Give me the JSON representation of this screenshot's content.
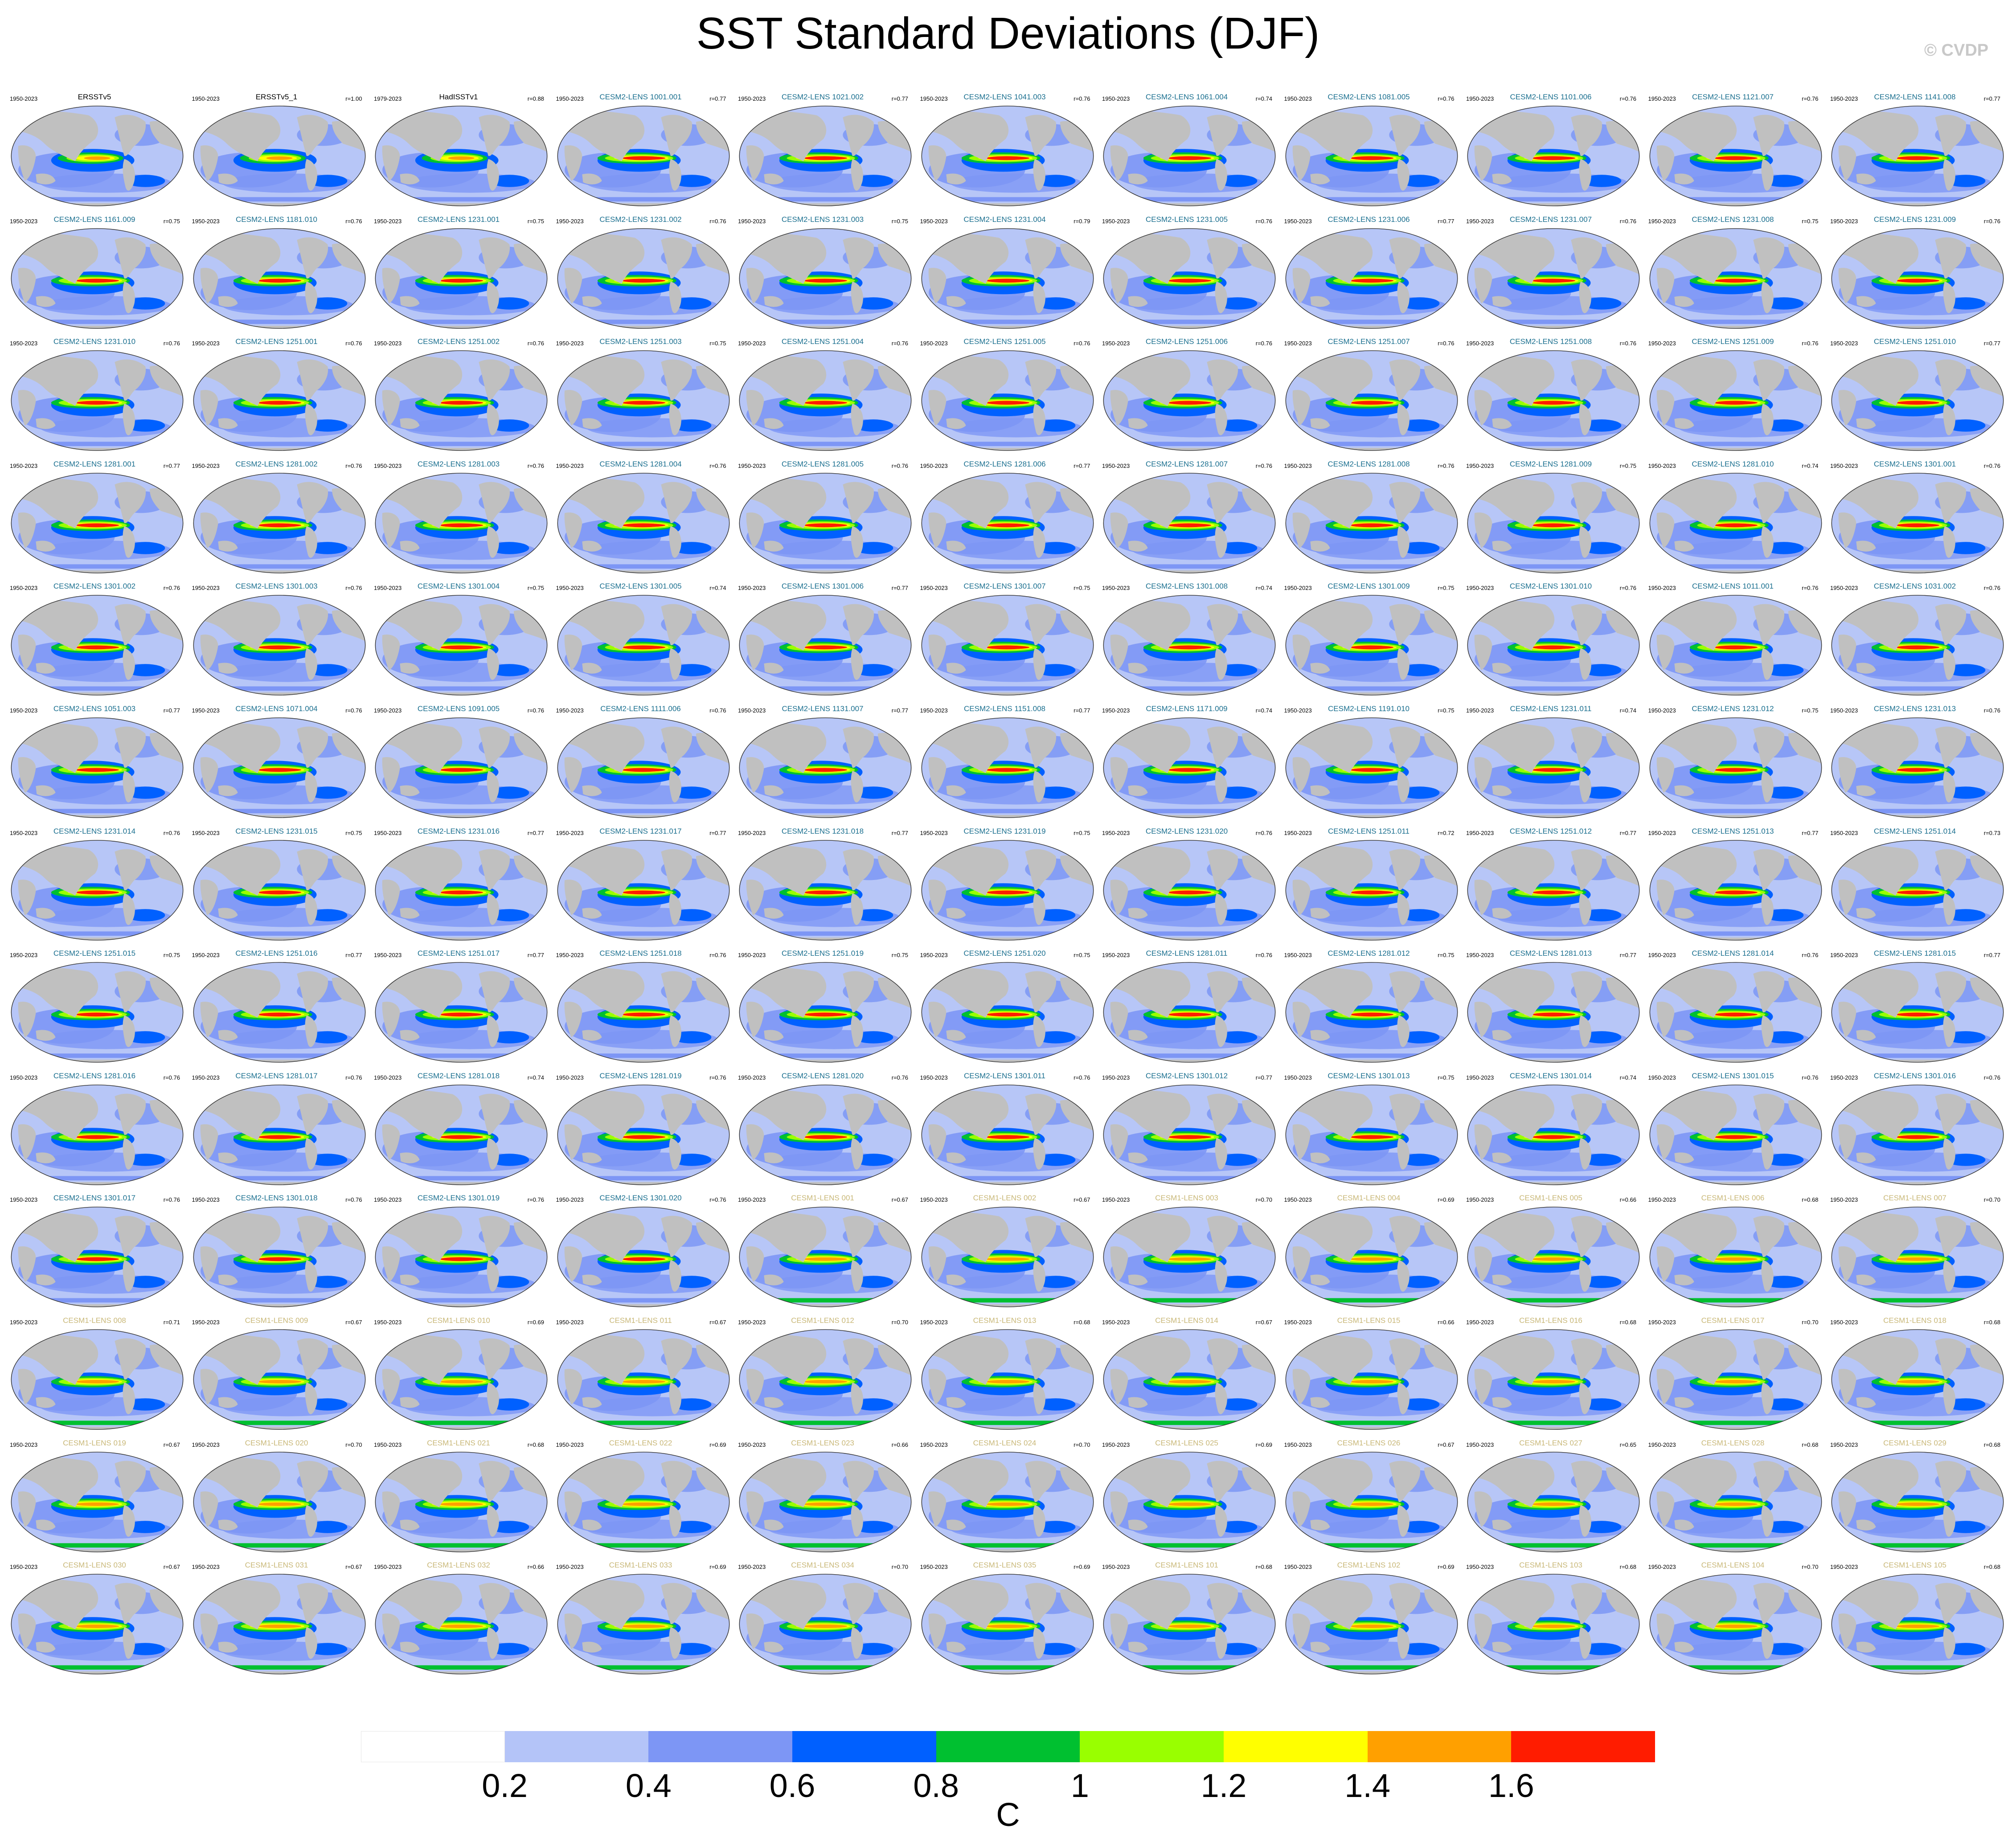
{
  "title": "SST Standard Deviations (DJF)",
  "credit": "© CVDP",
  "colors": {
    "ocean_base": "#b7c6f7",
    "land": "#c0c0c0",
    "obs_name": "#000000",
    "cesm2_name": "#1a6f8f",
    "cesm1_name": "#c9b878"
  },
  "colorbar": {
    "units": "C",
    "tick_labels": [
      "0.2",
      "0.4",
      "0.6",
      "0.8",
      "1",
      "1.2",
      "1.4",
      "1.6"
    ],
    "colors": [
      "#ffffff",
      "#b4c4f8",
      "#7d96f5",
      "#0060ff",
      "#00c030",
      "#99ff00",
      "#ffff00",
      "#ffa000",
      "#ff1c00"
    ]
  },
  "panels": [
    {
      "name": "ERSSTv5",
      "years": "1950-2023",
      "r": "",
      "group": "obs"
    },
    {
      "name": "ERSSTv5_1",
      "years": "1950-2023",
      "r": "r=1.00",
      "group": "obs"
    },
    {
      "name": "HadISSTv1",
      "years": "1979-2023",
      "r": "r=0.88",
      "group": "obs"
    },
    {
      "name": "CESM2-LENS 1001.001",
      "years": "1950-2023",
      "r": "r=0.77",
      "group": "cesm2"
    },
    {
      "name": "CESM2-LENS 1021.002",
      "years": "1950-2023",
      "r": "r=0.77",
      "group": "cesm2"
    },
    {
      "name": "CESM2-LENS 1041.003",
      "years": "1950-2023",
      "r": "r=0.76",
      "group": "cesm2"
    },
    {
      "name": "CESM2-LENS 1061.004",
      "years": "1950-2023",
      "r": "r=0.74",
      "group": "cesm2"
    },
    {
      "name": "CESM2-LENS 1081.005",
      "years": "1950-2023",
      "r": "r=0.76",
      "group": "cesm2"
    },
    {
      "name": "CESM2-LENS 1101.006",
      "years": "1950-2023",
      "r": "r=0.76",
      "group": "cesm2"
    },
    {
      "name": "CESM2-LENS 1121.007",
      "years": "1950-2023",
      "r": "r=0.76",
      "group": "cesm2"
    },
    {
      "name": "CESM2-LENS 1141.008",
      "years": "1950-2023",
      "r": "r=0.77",
      "group": "cesm2"
    },
    {
      "name": "CESM2-LENS 1161.009",
      "years": "1950-2023",
      "r": "r=0.75",
      "group": "cesm2"
    },
    {
      "name": "CESM2-LENS 1181.010",
      "years": "1950-2023",
      "r": "r=0.76",
      "group": "cesm2"
    },
    {
      "name": "CESM2-LENS 1231.001",
      "years": "1950-2023",
      "r": "r=0.75",
      "group": "cesm2"
    },
    {
      "name": "CESM2-LENS 1231.002",
      "years": "1950-2023",
      "r": "r=0.76",
      "group": "cesm2"
    },
    {
      "name": "CESM2-LENS 1231.003",
      "years": "1950-2023",
      "r": "r=0.75",
      "group": "cesm2"
    },
    {
      "name": "CESM2-LENS 1231.004",
      "years": "1950-2023",
      "r": "r=0.79",
      "group": "cesm2"
    },
    {
      "name": "CESM2-LENS 1231.005",
      "years": "1950-2023",
      "r": "r=0.76",
      "group": "cesm2"
    },
    {
      "name": "CESM2-LENS 1231.006",
      "years": "1950-2023",
      "r": "r=0.77",
      "group": "cesm2"
    },
    {
      "name": "CESM2-LENS 1231.007",
      "years": "1950-2023",
      "r": "r=0.76",
      "group": "cesm2"
    },
    {
      "name": "CESM2-LENS 1231.008",
      "years": "1950-2023",
      "r": "r=0.75",
      "group": "cesm2"
    },
    {
      "name": "CESM2-LENS 1231.009",
      "years": "1950-2023",
      "r": "r=0.76",
      "group": "cesm2"
    },
    {
      "name": "CESM2-LENS 1231.010",
      "years": "1950-2023",
      "r": "r=0.76",
      "group": "cesm2"
    },
    {
      "name": "CESM2-LENS 1251.001",
      "years": "1950-2023",
      "r": "r=0.76",
      "group": "cesm2"
    },
    {
      "name": "CESM2-LENS 1251.002",
      "years": "1950-2023",
      "r": "r=0.76",
      "group": "cesm2"
    },
    {
      "name": "CESM2-LENS 1251.003",
      "years": "1950-2023",
      "r": "r=0.75",
      "group": "cesm2"
    },
    {
      "name": "CESM2-LENS 1251.004",
      "years": "1950-2023",
      "r": "r=0.76",
      "group": "cesm2"
    },
    {
      "name": "CESM2-LENS 1251.005",
      "years": "1950-2023",
      "r": "r=0.76",
      "group": "cesm2"
    },
    {
      "name": "CESM2-LENS 1251.006",
      "years": "1950-2023",
      "r": "r=0.76",
      "group": "cesm2"
    },
    {
      "name": "CESM2-LENS 1251.007",
      "years": "1950-2023",
      "r": "r=0.76",
      "group": "cesm2"
    },
    {
      "name": "CESM2-LENS 1251.008",
      "years": "1950-2023",
      "r": "r=0.76",
      "group": "cesm2"
    },
    {
      "name": "CESM2-LENS 1251.009",
      "years": "1950-2023",
      "r": "r=0.76",
      "group": "cesm2"
    },
    {
      "name": "CESM2-LENS 1251.010",
      "years": "1950-2023",
      "r": "r=0.77",
      "group": "cesm2"
    },
    {
      "name": "CESM2-LENS 1281.001",
      "years": "1950-2023",
      "r": "r=0.77",
      "group": "cesm2"
    },
    {
      "name": "CESM2-LENS 1281.002",
      "years": "1950-2023",
      "r": "r=0.76",
      "group": "cesm2"
    },
    {
      "name": "CESM2-LENS 1281.003",
      "years": "1950-2023",
      "r": "r=0.76",
      "group": "cesm2"
    },
    {
      "name": "CESM2-LENS 1281.004",
      "years": "1950-2023",
      "r": "r=0.76",
      "group": "cesm2"
    },
    {
      "name": "CESM2-LENS 1281.005",
      "years": "1950-2023",
      "r": "r=0.76",
      "group": "cesm2"
    },
    {
      "name": "CESM2-LENS 1281.006",
      "years": "1950-2023",
      "r": "r=0.77",
      "group": "cesm2"
    },
    {
      "name": "CESM2-LENS 1281.007",
      "years": "1950-2023",
      "r": "r=0.76",
      "group": "cesm2"
    },
    {
      "name": "CESM2-LENS 1281.008",
      "years": "1950-2023",
      "r": "r=0.76",
      "group": "cesm2"
    },
    {
      "name": "CESM2-LENS 1281.009",
      "years": "1950-2023",
      "r": "r=0.75",
      "group": "cesm2"
    },
    {
      "name": "CESM2-LENS 1281.010",
      "years": "1950-2023",
      "r": "r=0.74",
      "group": "cesm2"
    },
    {
      "name": "CESM2-LENS 1301.001",
      "years": "1950-2023",
      "r": "r=0.76",
      "group": "cesm2"
    },
    {
      "name": "CESM2-LENS 1301.002",
      "years": "1950-2023",
      "r": "r=0.76",
      "group": "cesm2"
    },
    {
      "name": "CESM2-LENS 1301.003",
      "years": "1950-2023",
      "r": "r=0.76",
      "group": "cesm2"
    },
    {
      "name": "CESM2-LENS 1301.004",
      "years": "1950-2023",
      "r": "r=0.75",
      "group": "cesm2"
    },
    {
      "name": "CESM2-LENS 1301.005",
      "years": "1950-2023",
      "r": "r=0.74",
      "group": "cesm2"
    },
    {
      "name": "CESM2-LENS 1301.006",
      "years": "1950-2023",
      "r": "r=0.77",
      "group": "cesm2"
    },
    {
      "name": "CESM2-LENS 1301.007",
      "years": "1950-2023",
      "r": "r=0.75",
      "group": "cesm2"
    },
    {
      "name": "CESM2-LENS 1301.008",
      "years": "1950-2023",
      "r": "r=0.74",
      "group": "cesm2"
    },
    {
      "name": "CESM2-LENS 1301.009",
      "years": "1950-2023",
      "r": "r=0.75",
      "group": "cesm2"
    },
    {
      "name": "CESM2-LENS 1301.010",
      "years": "1950-2023",
      "r": "r=0.76",
      "group": "cesm2"
    },
    {
      "name": "CESM2-LENS 1011.001",
      "years": "1950-2023",
      "r": "r=0.76",
      "group": "cesm2"
    },
    {
      "name": "CESM2-LENS 1031.002",
      "years": "1950-2023",
      "r": "r=0.76",
      "group": "cesm2"
    },
    {
      "name": "CESM2-LENS 1051.003",
      "years": "1950-2023",
      "r": "r=0.77",
      "group": "cesm2"
    },
    {
      "name": "CESM2-LENS 1071.004",
      "years": "1950-2023",
      "r": "r=0.76",
      "group": "cesm2"
    },
    {
      "name": "CESM2-LENS 1091.005",
      "years": "1950-2023",
      "r": "r=0.76",
      "group": "cesm2"
    },
    {
      "name": "CESM2-LENS 1111.006",
      "years": "1950-2023",
      "r": "r=0.76",
      "group": "cesm2"
    },
    {
      "name": "CESM2-LENS 1131.007",
      "years": "1950-2023",
      "r": "r=0.77",
      "group": "cesm2"
    },
    {
      "name": "CESM2-LENS 1151.008",
      "years": "1950-2023",
      "r": "r=0.77",
      "group": "cesm2"
    },
    {
      "name": "CESM2-LENS 1171.009",
      "years": "1950-2023",
      "r": "r=0.74",
      "group": "cesm2"
    },
    {
      "name": "CESM2-LENS 1191.010",
      "years": "1950-2023",
      "r": "r=0.75",
      "group": "cesm2"
    },
    {
      "name": "CESM2-LENS 1231.011",
      "years": "1950-2023",
      "r": "r=0.74",
      "group": "cesm2"
    },
    {
      "name": "CESM2-LENS 1231.012",
      "years": "1950-2023",
      "r": "r=0.75",
      "group": "cesm2"
    },
    {
      "name": "CESM2-LENS 1231.013",
      "years": "1950-2023",
      "r": "r=0.76",
      "group": "cesm2"
    },
    {
      "name": "CESM2-LENS 1231.014",
      "years": "1950-2023",
      "r": "r=0.76",
      "group": "cesm2"
    },
    {
      "name": "CESM2-LENS 1231.015",
      "years": "1950-2023",
      "r": "r=0.75",
      "group": "cesm2"
    },
    {
      "name": "CESM2-LENS 1231.016",
      "years": "1950-2023",
      "r": "r=0.77",
      "group": "cesm2"
    },
    {
      "name": "CESM2-LENS 1231.017",
      "years": "1950-2023",
      "r": "r=0.77",
      "group": "cesm2"
    },
    {
      "name": "CESM2-LENS 1231.018",
      "years": "1950-2023",
      "r": "r=0.77",
      "group": "cesm2"
    },
    {
      "name": "CESM2-LENS 1231.019",
      "years": "1950-2023",
      "r": "r=0.75",
      "group": "cesm2"
    },
    {
      "name": "CESM2-LENS 1231.020",
      "years": "1950-2023",
      "r": "r=0.76",
      "group": "cesm2"
    },
    {
      "name": "CESM2-LENS 1251.011",
      "years": "1950-2023",
      "r": "r=0.72",
      "group": "cesm2"
    },
    {
      "name": "CESM2-LENS 1251.012",
      "years": "1950-2023",
      "r": "r=0.77",
      "group": "cesm2"
    },
    {
      "name": "CESM2-LENS 1251.013",
      "years": "1950-2023",
      "r": "r=0.77",
      "group": "cesm2"
    },
    {
      "name": "CESM2-LENS 1251.014",
      "years": "1950-2023",
      "r": "r=0.73",
      "group": "cesm2"
    },
    {
      "name": "CESM2-LENS 1251.015",
      "years": "1950-2023",
      "r": "r=0.75",
      "group": "cesm2"
    },
    {
      "name": "CESM2-LENS 1251.016",
      "years": "1950-2023",
      "r": "r=0.77",
      "group": "cesm2"
    },
    {
      "name": "CESM2-LENS 1251.017",
      "years": "1950-2023",
      "r": "r=0.77",
      "group": "cesm2"
    },
    {
      "name": "CESM2-LENS 1251.018",
      "years": "1950-2023",
      "r": "r=0.76",
      "group": "cesm2"
    },
    {
      "name": "CESM2-LENS 1251.019",
      "years": "1950-2023",
      "r": "r=0.75",
      "group": "cesm2"
    },
    {
      "name": "CESM2-LENS 1251.020",
      "years": "1950-2023",
      "r": "r=0.75",
      "group": "cesm2"
    },
    {
      "name": "CESM2-LENS 1281.011",
      "years": "1950-2023",
      "r": "r=0.76",
      "group": "cesm2"
    },
    {
      "name": "CESM2-LENS 1281.012",
      "years": "1950-2023",
      "r": "r=0.75",
      "group": "cesm2"
    },
    {
      "name": "CESM2-LENS 1281.013",
      "years": "1950-2023",
      "r": "r=0.77",
      "group": "cesm2"
    },
    {
      "name": "CESM2-LENS 1281.014",
      "years": "1950-2023",
      "r": "r=0.76",
      "group": "cesm2"
    },
    {
      "name": "CESM2-LENS 1281.015",
      "years": "1950-2023",
      "r": "r=0.77",
      "group": "cesm2"
    },
    {
      "name": "CESM2-LENS 1281.016",
      "years": "1950-2023",
      "r": "r=0.76",
      "group": "cesm2"
    },
    {
      "name": "CESM2-LENS 1281.017",
      "years": "1950-2023",
      "r": "r=0.76",
      "group": "cesm2"
    },
    {
      "name": "CESM2-LENS 1281.018",
      "years": "1950-2023",
      "r": "r=0.74",
      "group": "cesm2"
    },
    {
      "name": "CESM2-LENS 1281.019",
      "years": "1950-2023",
      "r": "r=0.76",
      "group": "cesm2"
    },
    {
      "name": "CESM2-LENS 1281.020",
      "years": "1950-2023",
      "r": "r=0.76",
      "group": "cesm2"
    },
    {
      "name": "CESM2-LENS 1301.011",
      "years": "1950-2023",
      "r": "r=0.76",
      "group": "cesm2"
    },
    {
      "name": "CESM2-LENS 1301.012",
      "years": "1950-2023",
      "r": "r=0.77",
      "group": "cesm2"
    },
    {
      "name": "CESM2-LENS 1301.013",
      "years": "1950-2023",
      "r": "r=0.75",
      "group": "cesm2"
    },
    {
      "name": "CESM2-LENS 1301.014",
      "years": "1950-2023",
      "r": "r=0.74",
      "group": "cesm2"
    },
    {
      "name": "CESM2-LENS 1301.015",
      "years": "1950-2023",
      "r": "r=0.76",
      "group": "cesm2"
    },
    {
      "name": "CESM2-LENS 1301.016",
      "years": "1950-2023",
      "r": "r=0.76",
      "group": "cesm2"
    },
    {
      "name": "CESM2-LENS 1301.017",
      "years": "1950-2023",
      "r": "r=0.76",
      "group": "cesm2"
    },
    {
      "name": "CESM2-LENS 1301.018",
      "years": "1950-2023",
      "r": "r=0.76",
      "group": "cesm2"
    },
    {
      "name": "CESM2-LENS 1301.019",
      "years": "1950-2023",
      "r": "r=0.76",
      "group": "cesm2"
    },
    {
      "name": "CESM2-LENS 1301.020",
      "years": "1950-2023",
      "r": "r=0.76",
      "group": "cesm2"
    },
    {
      "name": "CESM1-LENS 001",
      "years": "1950-2023",
      "r": "r=0.67",
      "group": "cesm1"
    },
    {
      "name": "CESM1-LENS 002",
      "years": "1950-2023",
      "r": "r=0.67",
      "group": "cesm1"
    },
    {
      "name": "CESM1-LENS 003",
      "years": "1950-2023",
      "r": "r=0.70",
      "group": "cesm1"
    },
    {
      "name": "CESM1-LENS 004",
      "years": "1950-2023",
      "r": "r=0.69",
      "group": "cesm1"
    },
    {
      "name": "CESM1-LENS 005",
      "years": "1950-2023",
      "r": "r=0.66",
      "group": "cesm1"
    },
    {
      "name": "CESM1-LENS 006",
      "years": "1950-2023",
      "r": "r=0.68",
      "group": "cesm1"
    },
    {
      "name": "CESM1-LENS 007",
      "years": "1950-2023",
      "r": "r=0.70",
      "group": "cesm1"
    },
    {
      "name": "CESM1-LENS 008",
      "years": "1950-2023",
      "r": "r=0.71",
      "group": "cesm1"
    },
    {
      "name": "CESM1-LENS 009",
      "years": "1950-2023",
      "r": "r=0.67",
      "group": "cesm1"
    },
    {
      "name": "CESM1-LENS 010",
      "years": "1950-2023",
      "r": "r=0.69",
      "group": "cesm1"
    },
    {
      "name": "CESM1-LENS 011",
      "years": "1950-2023",
      "r": "r=0.67",
      "group": "cesm1"
    },
    {
      "name": "CESM1-LENS 012",
      "years": "1950-2023",
      "r": "r=0.70",
      "group": "cesm1"
    },
    {
      "name": "CESM1-LENS 013",
      "years": "1950-2023",
      "r": "r=0.68",
      "group": "cesm1"
    },
    {
      "name": "CESM1-LENS 014",
      "years": "1950-2023",
      "r": "r=0.67",
      "group": "cesm1"
    },
    {
      "name": "CESM1-LENS 015",
      "years": "1950-2023",
      "r": "r=0.66",
      "group": "cesm1"
    },
    {
      "name": "CESM1-LENS 016",
      "years": "1950-2023",
      "r": "r=0.68",
      "group": "cesm1"
    },
    {
      "name": "CESM1-LENS 017",
      "years": "1950-2023",
      "r": "r=0.70",
      "group": "cesm1"
    },
    {
      "name": "CESM1-LENS 018",
      "years": "1950-2023",
      "r": "r=0.68",
      "group": "cesm1"
    },
    {
      "name": "CESM1-LENS 019",
      "years": "1950-2023",
      "r": "r=0.67",
      "group": "cesm1"
    },
    {
      "name": "CESM1-LENS 020",
      "years": "1950-2023",
      "r": "r=0.70",
      "group": "cesm1"
    },
    {
      "name": "CESM1-LENS 021",
      "years": "1950-2023",
      "r": "r=0.68",
      "group": "cesm1"
    },
    {
      "name": "CESM1-LENS 022",
      "years": "1950-2023",
      "r": "r=0.69",
      "group": "cesm1"
    },
    {
      "name": "CESM1-LENS 023",
      "years": "1950-2023",
      "r": "r=0.66",
      "group": "cesm1"
    },
    {
      "name": "CESM1-LENS 024",
      "years": "1950-2023",
      "r": "r=0.70",
      "group": "cesm1"
    },
    {
      "name": "CESM1-LENS 025",
      "years": "1950-2023",
      "r": "r=0.69",
      "group": "cesm1"
    },
    {
      "name": "CESM1-LENS 026",
      "years": "1950-2023",
      "r": "r=0.67",
      "group": "cesm1"
    },
    {
      "name": "CESM1-LENS 027",
      "years": "1950-2023",
      "r": "r=0.65",
      "group": "cesm1"
    },
    {
      "name": "CESM1-LENS 028",
      "years": "1950-2023",
      "r": "r=0.68",
      "group": "cesm1"
    },
    {
      "name": "CESM1-LENS 029",
      "years": "1950-2023",
      "r": "r=0.68",
      "group": "cesm1"
    },
    {
      "name": "CESM1-LENS 030",
      "years": "1950-2023",
      "r": "r=0.67",
      "group": "cesm1"
    },
    {
      "name": "CESM1-LENS 031",
      "years": "1950-2023",
      "r": "r=0.67",
      "group": "cesm1"
    },
    {
      "name": "CESM1-LENS 032",
      "years": "1950-2023",
      "r": "r=0.66",
      "group": "cesm1"
    },
    {
      "name": "CESM1-LENS 033",
      "years": "1950-2023",
      "r": "r=0.69",
      "group": "cesm1"
    },
    {
      "name": "CESM1-LENS 034",
      "years": "1950-2023",
      "r": "r=0.70",
      "group": "cesm1"
    },
    {
      "name": "CESM1-LENS 035",
      "years": "1950-2023",
      "r": "r=0.69",
      "group": "cesm1"
    },
    {
      "name": "CESM1-LENS 101",
      "years": "1950-2023",
      "r": "r=0.68",
      "group": "cesm1"
    },
    {
      "name": "CESM1-LENS 102",
      "years": "1950-2023",
      "r": "r=0.69",
      "group": "cesm1"
    },
    {
      "name": "CESM1-LENS 103",
      "years": "1950-2023",
      "r": "r=0.68",
      "group": "cesm1"
    },
    {
      "name": "CESM1-LENS 104",
      "years": "1950-2023",
      "r": "r=0.70",
      "group": "cesm1"
    },
    {
      "name": "CESM1-LENS 105",
      "years": "1950-2023",
      "r": "r=0.68",
      "group": "cesm1"
    }
  ],
  "chart_data": {
    "type": "heatmap",
    "title": "SST Standard Deviations (DJF)",
    "units": "C",
    "contour_levels": [
      0.2,
      0.4,
      0.6,
      0.8,
      1.0,
      1.2,
      1.4,
      1.6
    ],
    "layout": "13 rows x 11 columns of global maps",
    "legend": "bottom"
  }
}
